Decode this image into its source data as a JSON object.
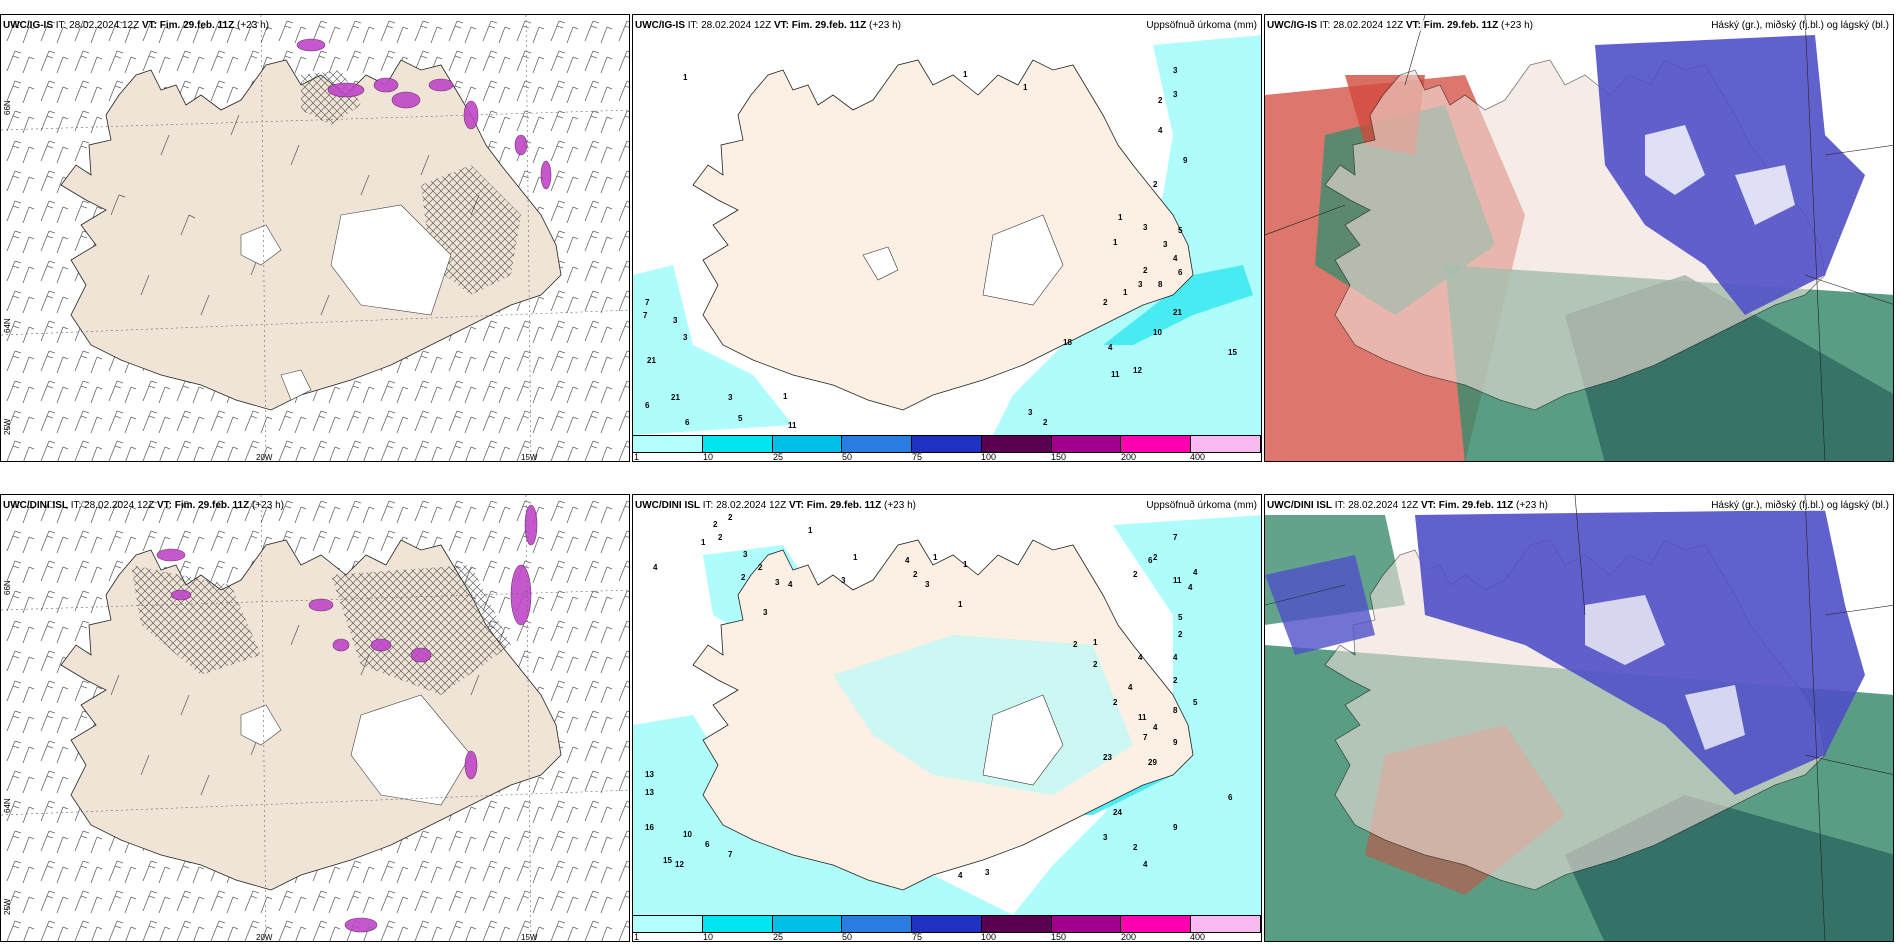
{
  "panels": {
    "top_left": {
      "model": "UWC/IG-IS",
      "it_label": "IT:",
      "it": "28.02.2024 12Z",
      "vt_label": "VT:",
      "vt": "Fim. 29.feb. 11Z",
      "lead": "(+23 h)"
    },
    "top_mid": {
      "model": "UWC/IG-IS",
      "it_label": "IT:",
      "it": "28.02.2024 12Z",
      "vt_label": "VT:",
      "vt": "Fim. 29.feb. 11Z",
      "lead": "(+23 h)",
      "title": "Uppsöfnuð úrkoma (mm)"
    },
    "top_right": {
      "model": "UWC/IG-IS",
      "it_label": "IT:",
      "it": "28.02.2024 12Z",
      "vt_label": "VT:",
      "vt": "Fim. 29.feb. 11Z",
      "lead": "(+23 h)",
      "title": "Háský (gr.), miðský (fj.bl.) og lágský (bl.)"
    },
    "bot_left": {
      "model": "UWC/DINI ISL",
      "it_label": "IT:",
      "it": "28.02.2024 12Z",
      "vt_label": "VT:",
      "vt": "Fim. 29.feb. 11Z",
      "lead": "(+23 h)"
    },
    "bot_mid": {
      "model": "UWC/DINI ISL",
      "it_label": "IT:",
      "it": "28.02.2024 12Z",
      "vt_label": "VT:",
      "vt": "Fim. 29.feb. 11Z",
      "lead": "(+23 h)",
      "title": "Uppsöfnuð úrkoma (mm)"
    },
    "bot_right": {
      "model": "UWC/DINI ISL",
      "it_label": "IT:",
      "it": "28.02.2024 12Z",
      "vt_label": "VT:",
      "vt": "Fim. 29.feb. 11Z",
      "lead": "(+23 h)",
      "title": "Háský (gr.), miðský (fj.bl.) og lágský (bl.)"
    }
  },
  "axes": {
    "lon1": "20W",
    "lon2": "15W",
    "lat1": "66N",
    "lat2": "64N",
    "lat3": "25W"
  },
  "legend": {
    "labels": [
      "1",
      "10",
      "25",
      "50",
      "75",
      "100",
      "150",
      "200",
      "400"
    ],
    "colors": [
      "#b3ffff",
      "#00e6f0",
      "#00c0e8",
      "#2a7de0",
      "#2030c0",
      "#5a0050",
      "#a0008c",
      "#ff00b0",
      "#f8b8f0"
    ]
  },
  "colors": {
    "land": "#f0e4d6",
    "land_light": "#fcf0e4",
    "precip": "#aefcfc",
    "hatch": "#444444",
    "high_cloud": "#5050c8",
    "mid_cloud": "#3c8c6e",
    "low_cloud": "#d24a3c",
    "snow_purple": "#c046c8"
  },
  "precip_top": [
    "1",
    "1",
    "1",
    "3",
    "3",
    "2",
    "4",
    "9",
    "2",
    "1",
    "1",
    "3",
    "3",
    "5",
    "4",
    "6",
    "2",
    "3",
    "8",
    "2",
    "1",
    "18",
    "10",
    "21",
    "15",
    "4",
    "11",
    "12",
    "3",
    "2",
    "7",
    "7",
    "3",
    "3",
    "21",
    "21",
    "6",
    "3",
    "5",
    "1",
    "11",
    "6"
  ],
  "precip_bot": [
    "2",
    "2",
    "1",
    "2",
    "1",
    "4",
    "3",
    "2",
    "2",
    "3",
    "4",
    "3",
    "3",
    "1",
    "1",
    "4",
    "2",
    "3",
    "1",
    "1",
    "7",
    "6",
    "4",
    "11",
    "4",
    "5",
    "2",
    "2",
    "1",
    "2",
    "2",
    "4",
    "4",
    "2",
    "2",
    "4",
    "2",
    "11",
    "4",
    "5",
    "8",
    "9",
    "7",
    "23",
    "29",
    "13",
    "24",
    "6",
    "9",
    "3",
    "2",
    "4",
    "13",
    "16",
    "10",
    "6",
    "7",
    "15",
    "12",
    "4",
    "3"
  ]
}
